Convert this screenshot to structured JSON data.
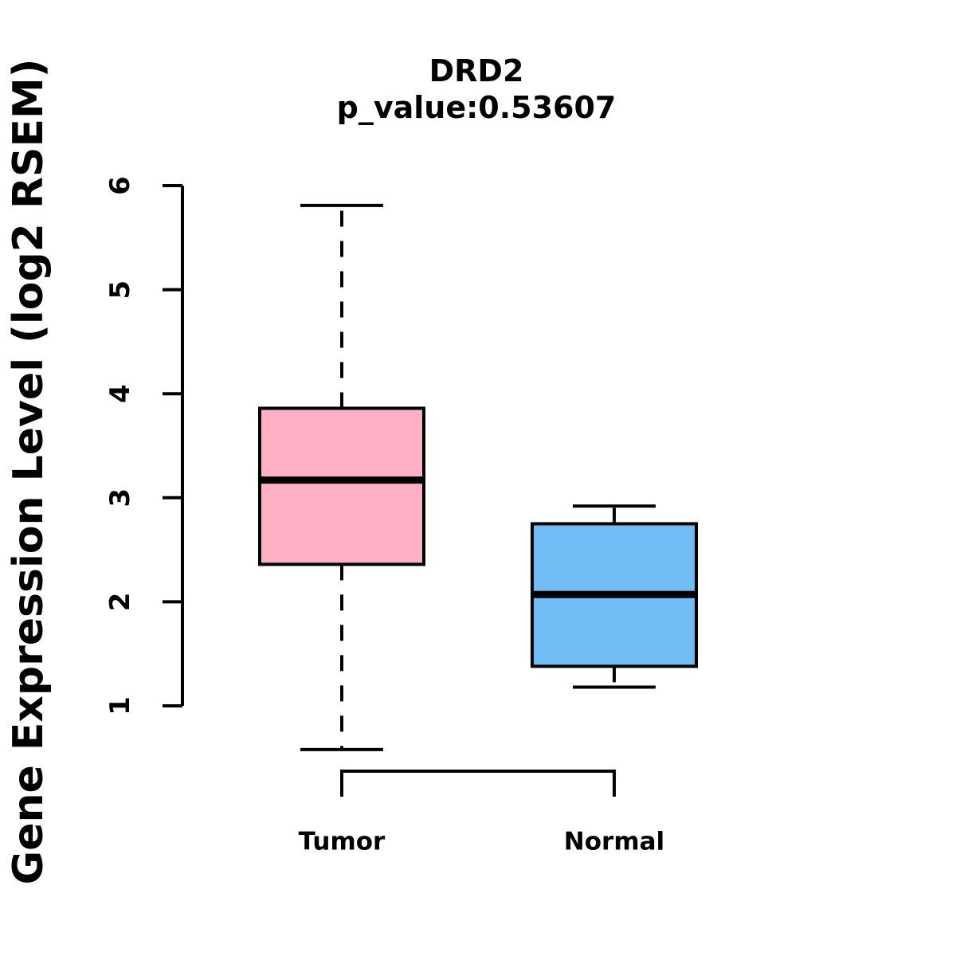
{
  "chart_data": {
    "type": "boxplot",
    "title": "DRD2",
    "subtitle": "p_value:0.53607",
    "ylabel": "Gene Expression Level (log2 RSEM)",
    "xlabel": "",
    "categories": [
      "Tumor",
      "Normal"
    ],
    "yticks": [
      1,
      2,
      3,
      4,
      5,
      6
    ],
    "ylim": [
      0.4,
      6.0
    ],
    "grid": false,
    "legend": "none",
    "series": [
      {
        "name": "Tumor",
        "color": "#FFB0C4",
        "whisker_low": 0.58,
        "q1": 2.36,
        "median": 3.17,
        "q3": 3.86,
        "whisker_high": 5.81
      },
      {
        "name": "Normal",
        "color": "#73BDF6",
        "whisker_low": 1.18,
        "q1": 1.38,
        "median": 2.07,
        "q3": 2.75,
        "whisker_high": 2.92
      }
    ]
  },
  "colors": {
    "line": "#000000",
    "background": "#FFFFFF",
    "tumor_box": "#FFB0C4",
    "normal_box": "#73BDF6"
  }
}
